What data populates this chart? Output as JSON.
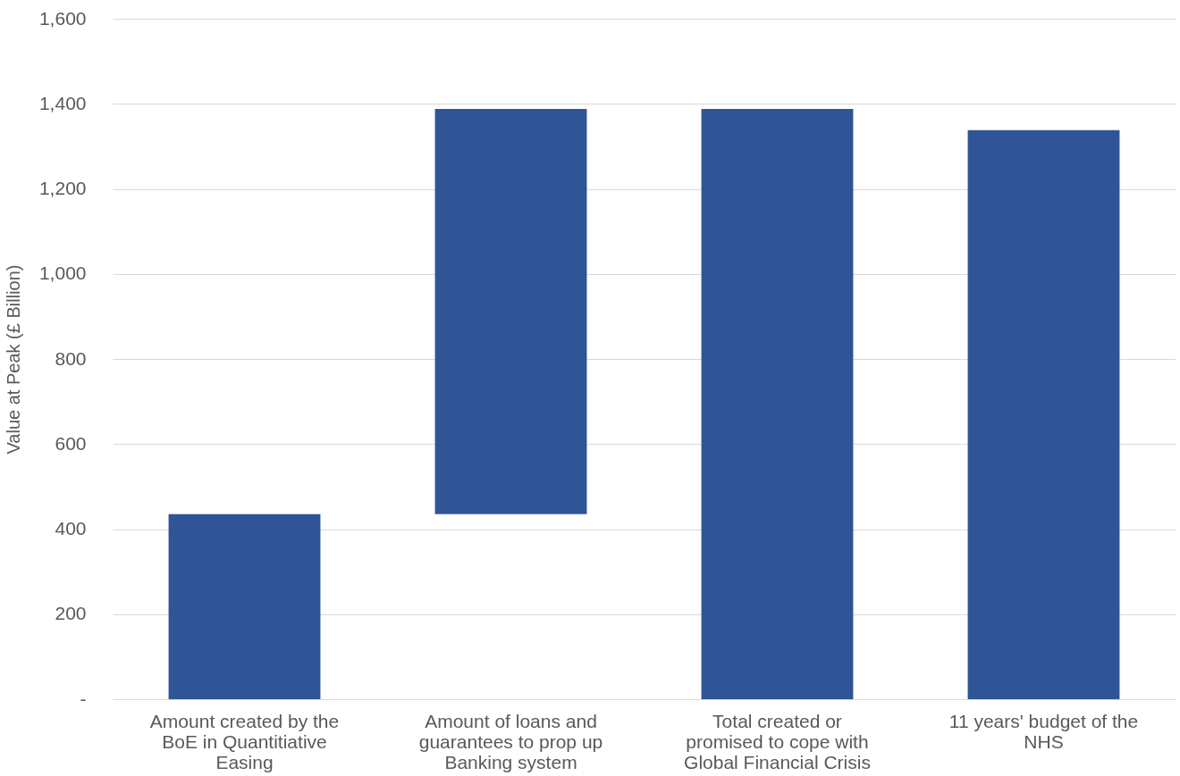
{
  "chart_data": {
    "type": "bar",
    "ylabel": "Value at Peak (£ Billion)",
    "categories": [
      "Amount created by the BoE in Quantitiative Easing",
      "Amount of loans and guarantees to prop up Banking system",
      "Total created or promised to cope with Global Financial Crisis",
      "11 years' budget of the NHS"
    ],
    "values": [
      435,
      953,
      1388,
      1338
    ],
    "base": [
      0,
      435,
      0,
      0
    ],
    "color": "#2f5597",
    "ylim": [
      0,
      1600
    ],
    "yticks": [
      {
        "value": 0,
        "label": "-"
      },
      200,
      400,
      600,
      800,
      {
        "value": 1000,
        "label": "1,000"
      },
      {
        "value": 1200,
        "label": "1,200"
      },
      {
        "value": 1400,
        "label": "1,400"
      },
      {
        "value": 1600,
        "label": "1,600"
      }
    ],
    "grid": "y"
  }
}
